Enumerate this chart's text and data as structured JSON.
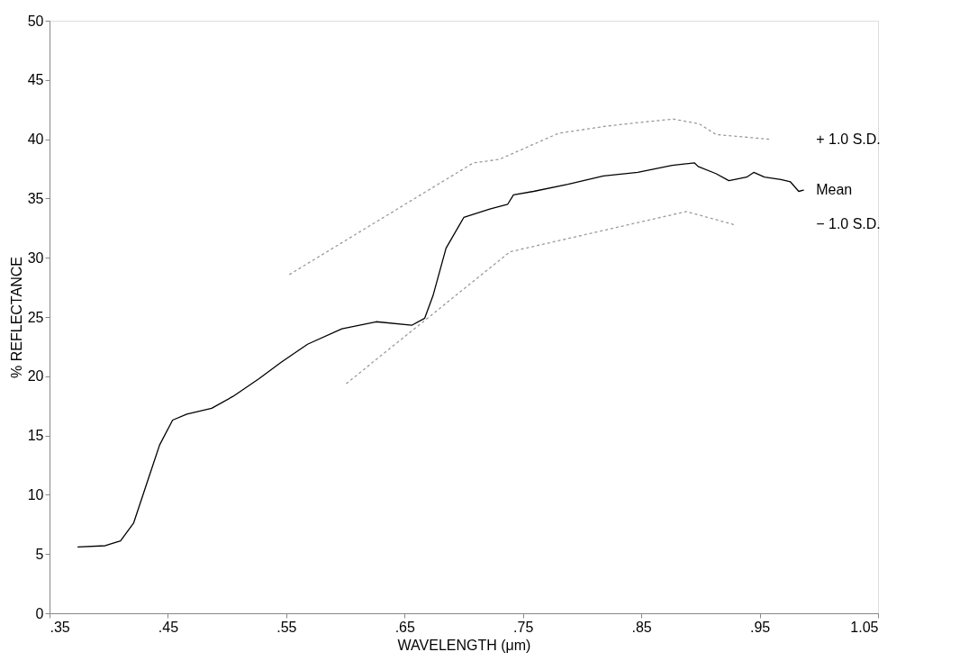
{
  "chart_data": {
    "type": "line",
    "xlabel": "WAVELENGTH (μm)",
    "ylabel": "% REFLECTANCE",
    "xlim": [
      0.35,
      1.05
    ],
    "ylim": [
      0,
      50
    ],
    "xticks": [
      {
        "value": 0.35,
        "label": ".35"
      },
      {
        "value": 0.45,
        "label": ".45"
      },
      {
        "value": 0.55,
        "label": ".55"
      },
      {
        "value": 0.65,
        "label": ".65"
      },
      {
        "value": 0.75,
        "label": ".75"
      },
      {
        "value": 0.85,
        "label": ".85"
      },
      {
        "value": 0.95,
        "label": ".95"
      },
      {
        "value": 1.05,
        "label": "1.05"
      }
    ],
    "yticks": [
      0,
      5,
      10,
      15,
      20,
      25,
      30,
      35,
      40,
      45,
      50
    ],
    "grid": false,
    "legend": false,
    "marker": "none",
    "series": [
      {
        "name": "+ 1.0 S.D.",
        "color": "#999999",
        "line_style": "dotted",
        "x": [
          0.553,
          0.708,
          0.73,
          0.78,
          0.82,
          0.847,
          0.877,
          0.899,
          0.913,
          0.958
        ],
        "values": [
          28.6,
          38.0,
          38.3,
          40.5,
          41.1,
          41.4,
          41.7,
          41.3,
          40.4,
          40.0
        ]
      },
      {
        "name": "Mean",
        "color": "#000000",
        "line_style": "solid",
        "x": [
          0.374,
          0.397,
          0.41,
          0.421,
          0.432,
          0.443,
          0.454,
          0.466,
          0.487,
          0.505,
          0.527,
          0.546,
          0.568,
          0.597,
          0.626,
          0.656,
          0.667,
          0.674,
          0.685,
          0.7,
          0.722,
          0.737,
          0.742,
          0.759,
          0.788,
          0.818,
          0.847,
          0.876,
          0.895,
          0.898,
          0.913,
          0.924,
          0.939,
          0.945,
          0.954,
          0.968,
          0.976,
          0.983,
          0.987
        ],
        "values": [
          5.6,
          5.7,
          6.1,
          7.6,
          10.9,
          14.2,
          16.3,
          16.8,
          17.3,
          18.3,
          19.8,
          21.2,
          22.7,
          24.0,
          24.6,
          24.3,
          24.9,
          26.8,
          30.8,
          33.4,
          34.1,
          34.5,
          35.3,
          35.6,
          36.2,
          36.9,
          37.2,
          37.8,
          38.0,
          37.7,
          37.1,
          36.5,
          36.8,
          37.2,
          36.8,
          36.6,
          36.4,
          35.6,
          35.7
        ]
      },
      {
        "name": "− 1.0 S.D.",
        "color": "#999999",
        "line_style": "dotted",
        "x": [
          0.601,
          0.739,
          0.888,
          0.928
        ],
        "values": [
          19.4,
          30.5,
          33.9,
          32.8
        ]
      }
    ]
  }
}
